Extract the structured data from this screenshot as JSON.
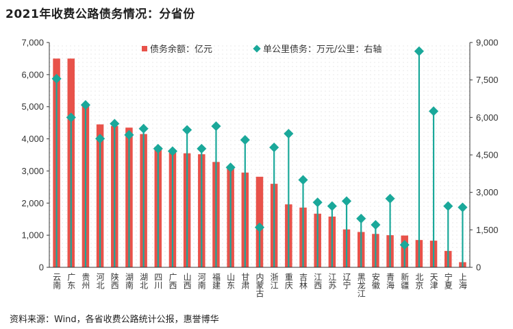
{
  "title": "2021年收费公路债务情况：分省份",
  "source": "资料来源：Wind，各省收费公路统计公报，惠誉博华",
  "chart_data": {
    "type": "bar",
    "categories": [
      "云南",
      "广东",
      "贵州",
      "河北",
      "陕西",
      "湖南",
      "湖北",
      "四川",
      "广西",
      "山西",
      "河南",
      "福建",
      "山东",
      "甘肃",
      "内蒙古",
      "浙江",
      "重庆",
      "吉林",
      "江西",
      "江苏",
      "辽宁",
      "黑龙江",
      "安徽",
      "青海",
      "新疆",
      "北京",
      "天津",
      "宁夏",
      "上海"
    ],
    "series": [
      {
        "name": "债务余额：亿元",
        "type": "bar",
        "axis": "left",
        "color": "#e8524a",
        "values": [
          6500,
          6500,
          5050,
          4450,
          4400,
          4350,
          4150,
          3750,
          3600,
          3550,
          3520,
          3280,
          3100,
          2950,
          2820,
          2600,
          1960,
          1860,
          1670,
          1580,
          1180,
          1100,
          1040,
          1000,
          990,
          850,
          830,
          510,
          160
        ]
      },
      {
        "name": "单公里债务：万元/公里：右轴",
        "type": "scatter-stem",
        "axis": "right",
        "color": "#1aa89a",
        "values": [
          7550,
          6000,
          6500,
          5150,
          5750,
          5300,
          5550,
          4750,
          4650,
          5500,
          4750,
          5650,
          4000,
          5100,
          1600,
          4800,
          5350,
          3500,
          2600,
          2450,
          2650,
          1950,
          1700,
          2750,
          900,
          8650,
          6250,
          2450,
          2400
        ]
      }
    ],
    "ylim_left": [
      0,
      7000
    ],
    "yticks_left": [
      "0",
      "1,000",
      "2,000",
      "3,000",
      "4,000",
      "5,000",
      "6,000",
      "7,000"
    ],
    "ylim_right": [
      0,
      9000
    ],
    "yticks_right": [
      "0",
      "1,500",
      "3,000",
      "4,500",
      "6,000",
      "7,500",
      "9,000"
    ],
    "legend_position": "top"
  }
}
